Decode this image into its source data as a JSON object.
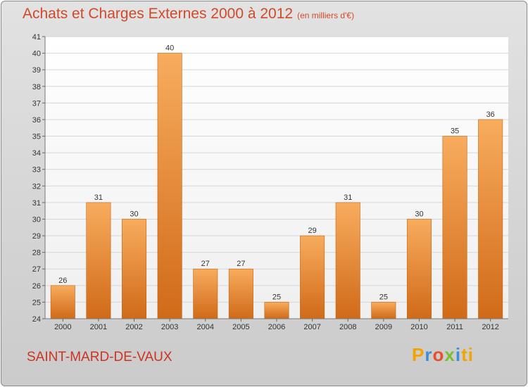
{
  "title": "Achats et Charges Externes 2000 à 2012",
  "subtitle": "(en milliers d'€)",
  "commune": "SAINT-MARD-DE-VAUX",
  "logo": [
    "P",
    "r",
    "o",
    "x",
    "i",
    "ti"
  ],
  "colors": {
    "bar_light": "#f7a85a",
    "bar_dark": "#d46f1c",
    "title": "#d04a2a"
  },
  "chart_data": {
    "type": "bar",
    "categories": [
      "2000",
      "2001",
      "2002",
      "2003",
      "2004",
      "2005",
      "2006",
      "2007",
      "2008",
      "2009",
      "2010",
      "2011",
      "2012"
    ],
    "values": [
      26,
      31,
      30,
      40,
      27,
      27,
      25,
      29,
      31,
      25,
      30,
      35,
      36
    ],
    "ylim": [
      24,
      41
    ],
    "yticks": [
      24,
      25,
      26,
      27,
      28,
      29,
      30,
      31,
      32,
      33,
      34,
      35,
      36,
      37,
      38,
      39,
      40,
      41
    ],
    "grid": true
  }
}
